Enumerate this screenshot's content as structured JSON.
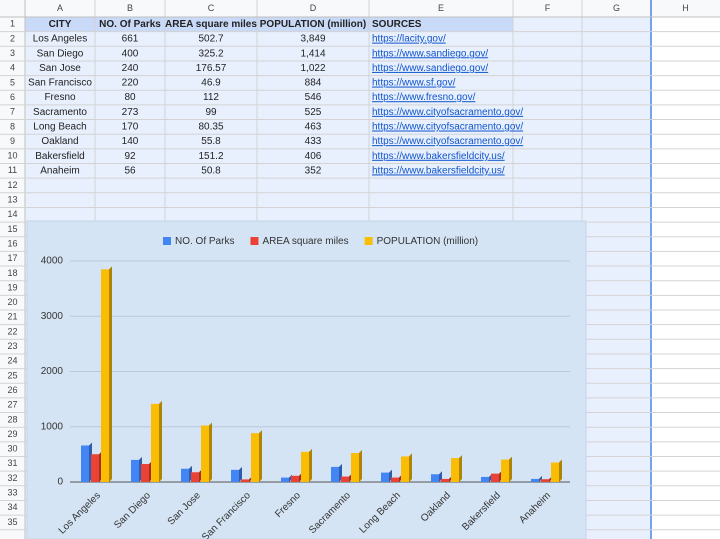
{
  "column_headers": [
    "A",
    "B",
    "C",
    "D",
    "E",
    "F",
    "G",
    "H"
  ],
  "row_numbers": [
    1,
    2,
    3,
    4,
    5,
    6,
    7,
    8,
    9,
    10,
    11,
    12,
    13,
    14,
    15,
    16,
    17,
    18,
    19,
    20,
    21,
    22,
    23,
    24,
    25,
    26,
    27,
    28,
    29,
    30,
    31,
    32,
    33,
    34,
    35
  ],
  "table": {
    "header": [
      "CITY",
      "NO. Of Parks",
      "AREA square miles",
      "POPULATION (million)",
      "SOURCES"
    ],
    "rows": [
      [
        "Los Angeles",
        "661",
        "502.7",
        "3,849",
        "https://lacity.gov/"
      ],
      [
        "San Diego",
        "400",
        "325.2",
        "1,414",
        "https://www.sandiego.gov/"
      ],
      [
        "San Jose",
        "240",
        "176.57",
        "1,022",
        "https://www.sandiego.gov/"
      ],
      [
        "San Francisco",
        "220",
        "46.9",
        "884",
        "https://www.sf.gov/"
      ],
      [
        "Fresno",
        "80",
        "112",
        "546",
        "https://www.fresno.gov/"
      ],
      [
        "Sacramento",
        "273",
        "99",
        "525",
        "https://www.cityofsacramento.gov/"
      ],
      [
        "Long Beach",
        "170",
        "80.35",
        "463",
        "https://www.cityofsacramento.gov/"
      ],
      [
        "Oakland",
        "140",
        "55.8",
        "433",
        "https://www.cityofsacramento.gov/"
      ],
      [
        "Bakersfield",
        "92",
        "151.2",
        "406",
        "https://www.bakersfieldcity.us/"
      ],
      [
        "Anaheim",
        "56",
        "50.8",
        "352",
        "https://www.bakersfieldcity.us/"
      ]
    ]
  },
  "chart_data": {
    "type": "bar",
    "categories": [
      "Los Angeles",
      "San Diego",
      "San Jose",
      "San Francisco",
      "Fresno",
      "Sacramento",
      "Long Beach",
      "Oakland",
      "Bakersfield",
      "Anaheim"
    ],
    "series": [
      {
        "name": "NO. Of Parks",
        "color": "#4285f4",
        "values": [
          661,
          400,
          240,
          220,
          80,
          273,
          170,
          140,
          92,
          56
        ]
      },
      {
        "name": "AREA square miles",
        "color": "#ea4335",
        "values": [
          502.7,
          325.2,
          176.57,
          46.9,
          112,
          99,
          80.35,
          55.8,
          151.2,
          50.8
        ]
      },
      {
        "name": "POPULATION (million)",
        "color": "#fbbc04",
        "values": [
          3849,
          1414,
          1022,
          884,
          546,
          525,
          463,
          433,
          406,
          352
        ]
      }
    ],
    "ylim": [
      0,
      4000
    ],
    "yticks": [
      0,
      1000,
      2000,
      3000,
      4000
    ],
    "grid": true,
    "legend": "top"
  }
}
